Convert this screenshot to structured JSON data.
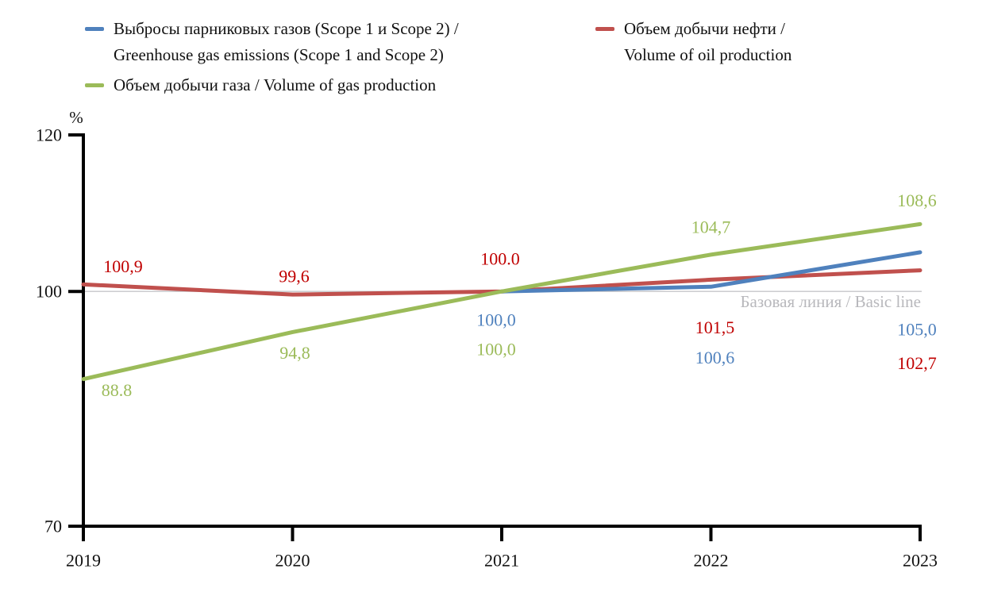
{
  "legend": {
    "items": [
      {
        "id": "emissions",
        "color": "#4f81bd",
        "lines": [
          "Выбросы парниковых газов (Scope 1 и Scope 2) /",
          "Greenhouse gas emissions (Scope 1 and Scope 2)"
        ]
      },
      {
        "id": "oil",
        "color": "#c0504d",
        "lines": [
          "Объем добычи нефти /",
          "Volume of oil production"
        ]
      },
      {
        "id": "gas",
        "color": "#9bbb59",
        "lines": [
          "Объем добычи газа / Volume of gas production"
        ]
      }
    ]
  },
  "chart_data": {
    "type": "line",
    "title": "",
    "unit": "%",
    "x_ticks": [
      "2019",
      "2020",
      "2021",
      "2022",
      "2023"
    ],
    "y_ticks": [
      "120",
      "100",
      "70"
    ],
    "ylim": [
      70,
      120
    ],
    "x_range": [
      2019,
      2023
    ],
    "grid": false,
    "legend_position": "top",
    "baseline": {
      "value": 100,
      "label": "Базовая линия / Basic line",
      "color": "#c6c6c9",
      "label_color": "#b8b8bc"
    },
    "series": [
      {
        "id": "emissions",
        "name": "Выбросы парниковых газов (Scope 1 и Scope 2) / Greenhouse gas emissions (Scope 1 and Scope 2)",
        "color": "#4f81bd",
        "label_color": "#4f81bd",
        "x": [
          2021,
          2022,
          2023
        ],
        "values": [
          100.0,
          100.6,
          105.0
        ],
        "point_labels": [
          "100,0",
          "100,6",
          "105,0"
        ]
      },
      {
        "id": "oil",
        "name": "Объем добычи нефти / Volume of oil production",
        "color": "#c0504d",
        "label_color": "#c00000",
        "x": [
          2019,
          2020,
          2021,
          2022,
          2023
        ],
        "values": [
          100.9,
          99.6,
          100.0,
          101.5,
          102.7
        ],
        "point_labels": [
          "100,9",
          "99,6",
          "100.0",
          "101,5",
          "102,7"
        ]
      },
      {
        "id": "gas",
        "name": "Объем добычи газа / Volume of gas production",
        "color": "#9bbb59",
        "label_color": "#9bbb59",
        "x": [
          2019,
          2020,
          2021,
          2022,
          2023
        ],
        "values": [
          88.8,
          94.8,
          100.0,
          104.7,
          108.6
        ],
        "point_labels": [
          "88.8",
          "94,8",
          "100,0",
          "104,7",
          "108,6"
        ]
      }
    ]
  }
}
